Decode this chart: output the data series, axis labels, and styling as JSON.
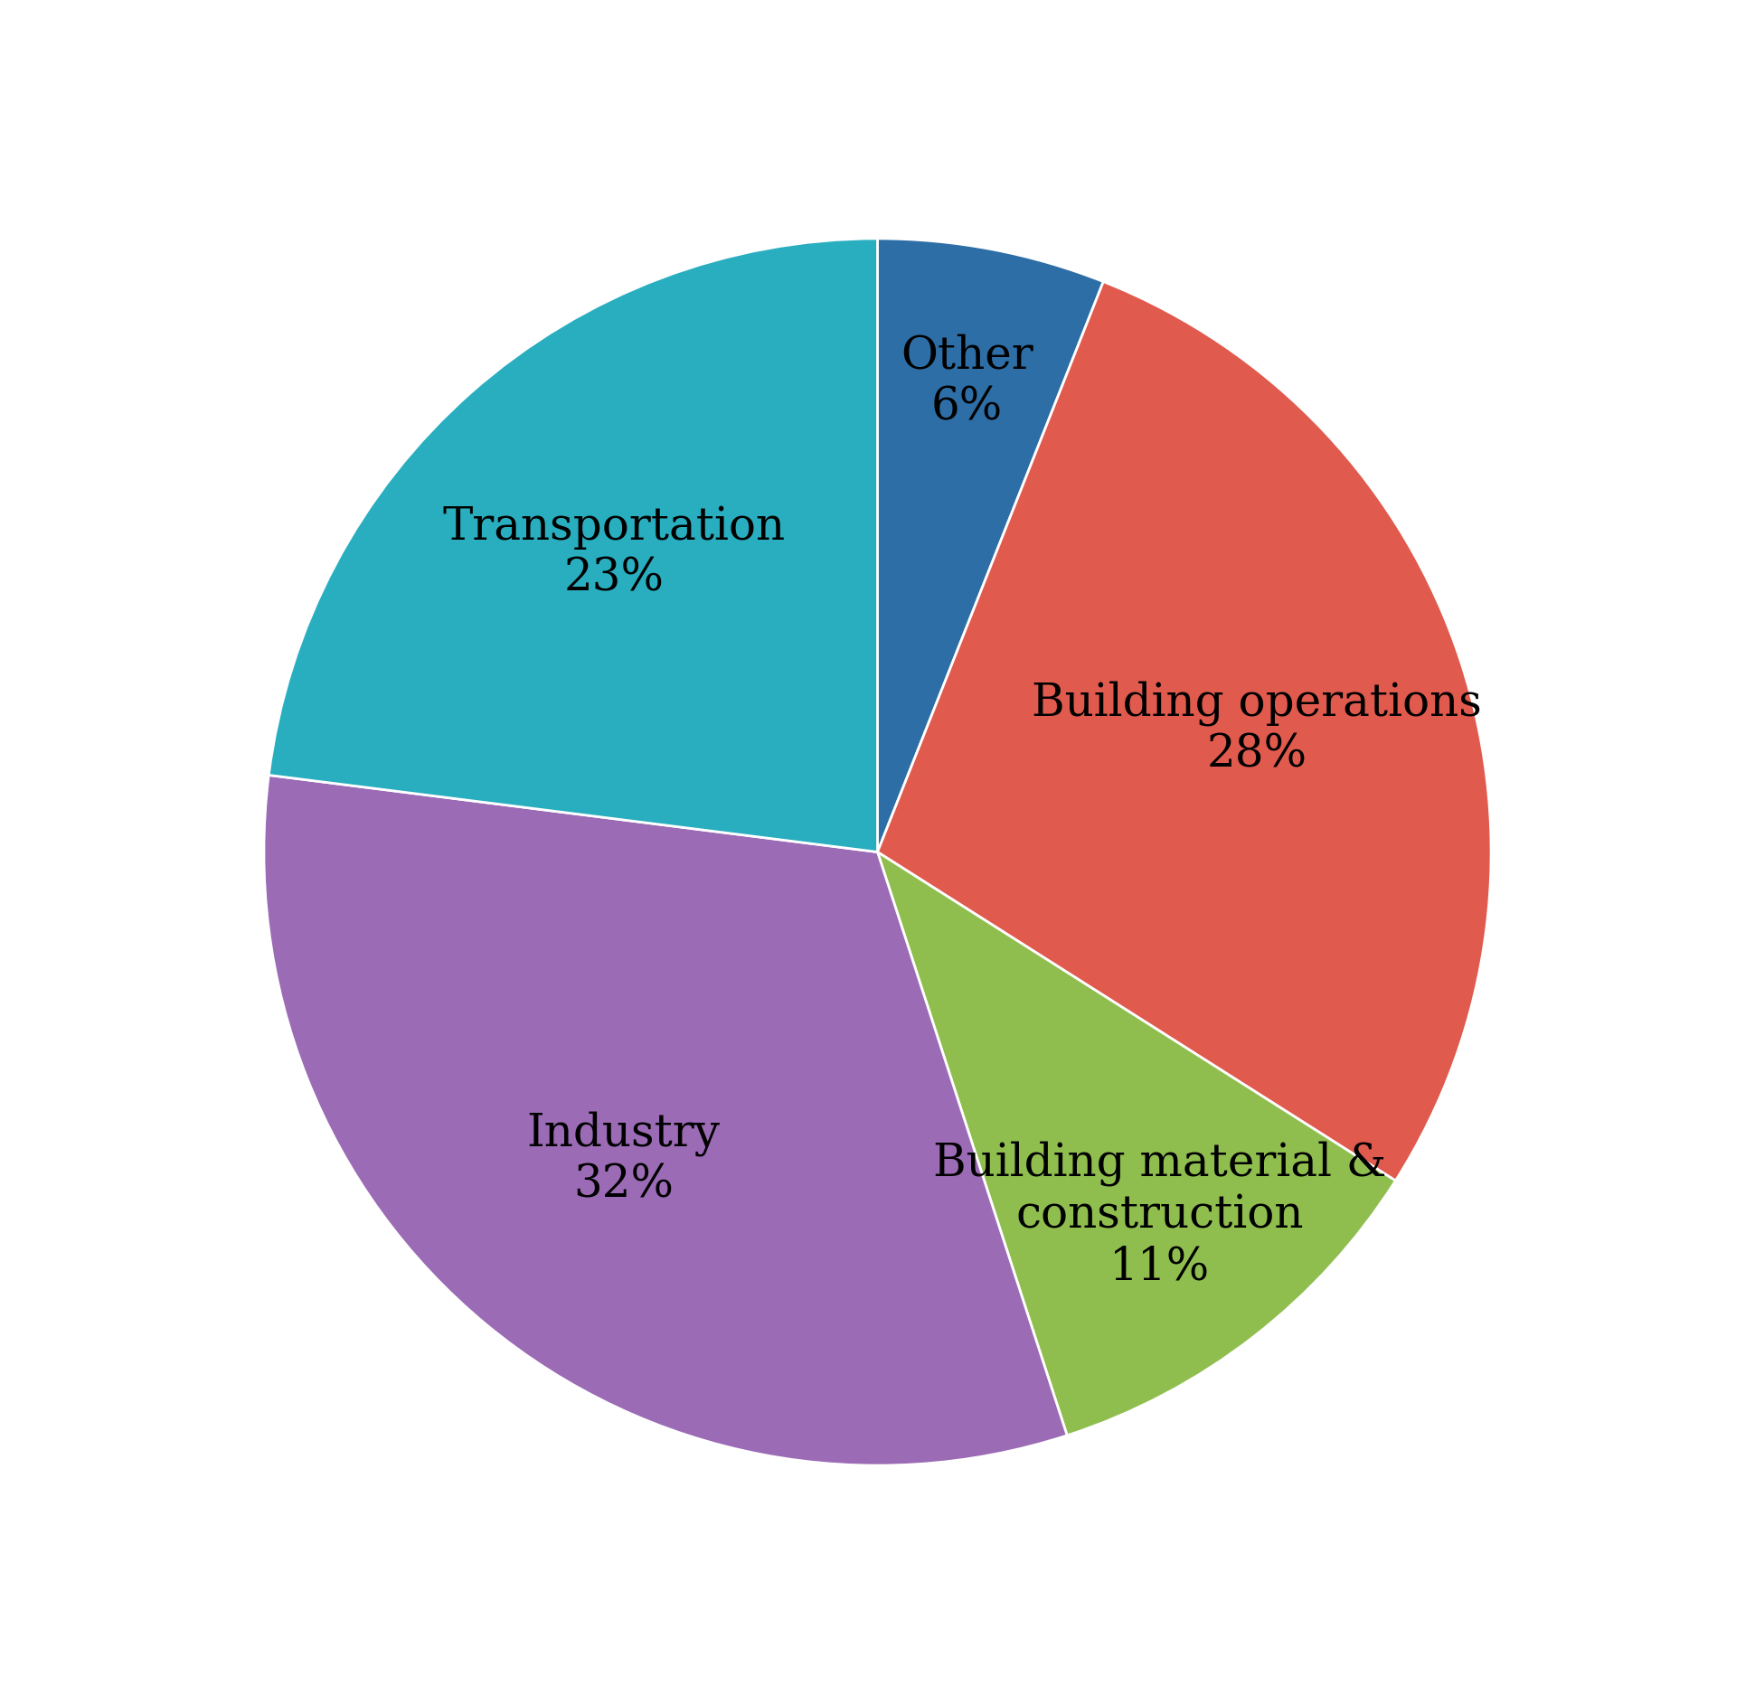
{
  "slices": [
    {
      "label": "Other\n6%",
      "value": 6,
      "color": "#2e6ea6"
    },
    {
      "label": "Building operations\n28%",
      "value": 28,
      "color": "#e05a4e"
    },
    {
      "label": "Building material &\nconstruction\n11%",
      "value": 11,
      "color": "#8fbe4f"
    },
    {
      "label": "Industry\n32%",
      "value": 32,
      "color": "#9b6bb5"
    },
    {
      "label": "Transportation\n23%",
      "value": 23,
      "color": "#29aec0"
    }
  ],
  "startangle": 90,
  "figsize": [
    19.41,
    18.85
  ],
  "dpi": 100,
  "label_fontsize": 36,
  "label_fontfamily": "serif",
  "background_color": "#ffffff",
  "label_distances": [
    0.78,
    0.65,
    0.75,
    0.65,
    0.65
  ]
}
